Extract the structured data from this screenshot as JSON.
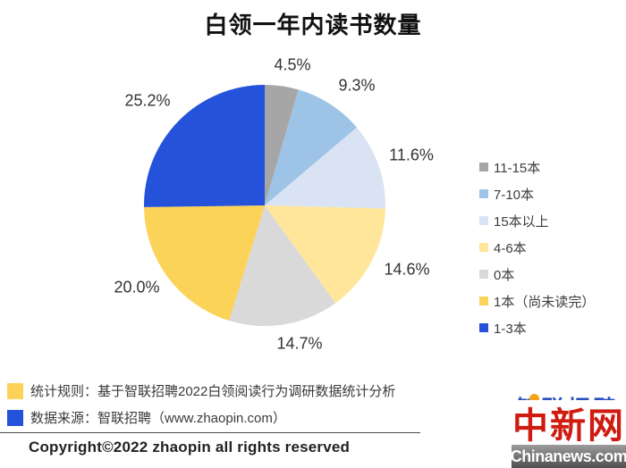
{
  "title": "白领一年内读书数量",
  "chart_data": {
    "type": "pie",
    "title": "白领一年内读书数量",
    "direction": "clockwise",
    "start_angle_deg": 0,
    "legend_position": "right",
    "slices": [
      {
        "name": "11-15本",
        "value": 4.5,
        "label": "4.5%",
        "color": "#a6a6a6"
      },
      {
        "name": "7-10本",
        "value": 9.3,
        "label": "9.3%",
        "color": "#9dc3e6"
      },
      {
        "name": "15本以上",
        "value": 11.6,
        "label": "11.6%",
        "color": "#dae3f3"
      },
      {
        "name": "4-6本",
        "value": 14.6,
        "label": "14.6%",
        "color": "#ffe69b"
      },
      {
        "name": "0本",
        "value": 14.7,
        "label": "14.7%",
        "color": "#d9d9d9"
      },
      {
        "name": "1本（尚未读完）",
        "value": 20.0,
        "label": "20.0%",
        "color": "#fbd359"
      },
      {
        "name": "1-3本",
        "value": 25.2,
        "label": "25.2%",
        "color": "#2452db"
      }
    ]
  },
  "footer": {
    "note1": "统计规则：基于智联招聘2022白领阅读行为调研数据统计分析",
    "note1_swatch_color": "#fbd359",
    "note2": "数据来源：智联招聘（www.zhaopin.com）",
    "note2_swatch_color": "#2452db",
    "copyright": "Copyright©2022 zhaopin all rights reserved"
  },
  "logos": {
    "zhaopin": "智联招聘",
    "chinanews": "中新网",
    "chinanews_domain": "Chinanews.com"
  }
}
